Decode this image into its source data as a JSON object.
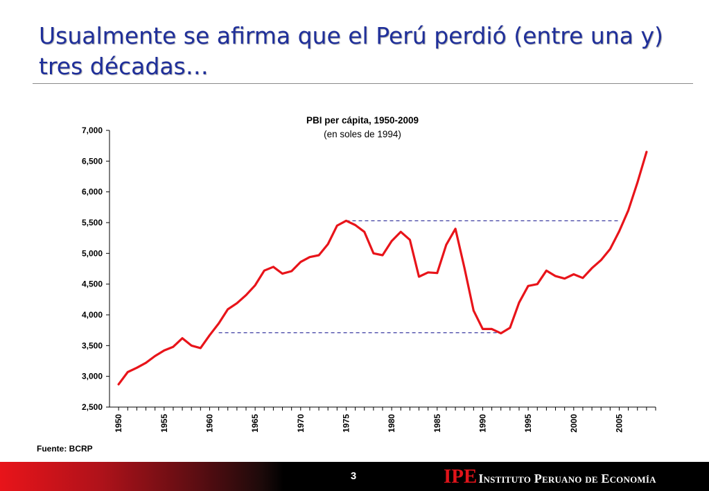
{
  "slide": {
    "title": "Usualmente se afirma que el Perú perdió (entre una y) tres décadas…",
    "source": "Fuente: BCRP",
    "page_number": "3",
    "footer_logo_mark": "IPE",
    "footer_logo_text": "Instituto Peruano de Economía"
  },
  "colors": {
    "title": "#1f2f9a",
    "series": "#e8141a",
    "reference_lines": "#3a3aa0",
    "footer_accent": "#e0141a"
  },
  "chart_data": {
    "type": "line",
    "title": "PBI per cápita, 1950-2009",
    "subtitle": "(en soles de 1994)",
    "xlabel": "",
    "ylabel": "",
    "xlim": [
      1950,
      2008
    ],
    "ylim": [
      2500,
      7000
    ],
    "y_ticks": [
      2500,
      3000,
      3500,
      4000,
      4500,
      5000,
      5500,
      6000,
      6500,
      7000
    ],
    "x_tick_labels": [
      1950,
      1955,
      1960,
      1965,
      1970,
      1975,
      1980,
      1985,
      1990,
      1995,
      2000,
      2005
    ],
    "grid": false,
    "legend": "none",
    "series": [
      {
        "x": [
          1950,
          1951,
          1952,
          1953,
          1954,
          1955,
          1956,
          1957,
          1958,
          1959,
          1960,
          1961,
          1962,
          1963,
          1964,
          1965,
          1966,
          1967,
          1968,
          1969,
          1970,
          1971,
          1972,
          1973,
          1974,
          1975,
          1976,
          1977,
          1978,
          1979,
          1980,
          1981,
          1982,
          1983,
          1984,
          1985,
          1986,
          1987,
          1988,
          1989,
          1990,
          1991,
          1992,
          1993,
          1994,
          1995,
          1996,
          1997,
          1998,
          1999,
          2000,
          2001,
          2002,
          2003,
          2004,
          2005,
          2006,
          2007,
          2008
        ],
        "values": [
          2870,
          3070,
          3140,
          3220,
          3330,
          3420,
          3480,
          3620,
          3500,
          3460,
          3670,
          3860,
          4090,
          4190,
          4320,
          4480,
          4720,
          4780,
          4670,
          4710,
          4860,
          4940,
          4970,
          5150,
          5450,
          5530,
          5460,
          5350,
          5000,
          4970,
          5200,
          5350,
          5220,
          4620,
          4690,
          4680,
          5140,
          5400,
          4760,
          4070,
          3770,
          3770,
          3700,
          3790,
          4200,
          4470,
          4500,
          4720,
          4630,
          4590,
          4660,
          4600,
          4760,
          4890,
          5070,
          5360,
          5700,
          6150,
          6650
        ]
      }
    ],
    "reference_lines": [
      {
        "y": 5530,
        "x": [
          1975,
          2005
        ]
      },
      {
        "y": 3710,
        "x": [
          1961,
          1992
        ]
      }
    ]
  }
}
